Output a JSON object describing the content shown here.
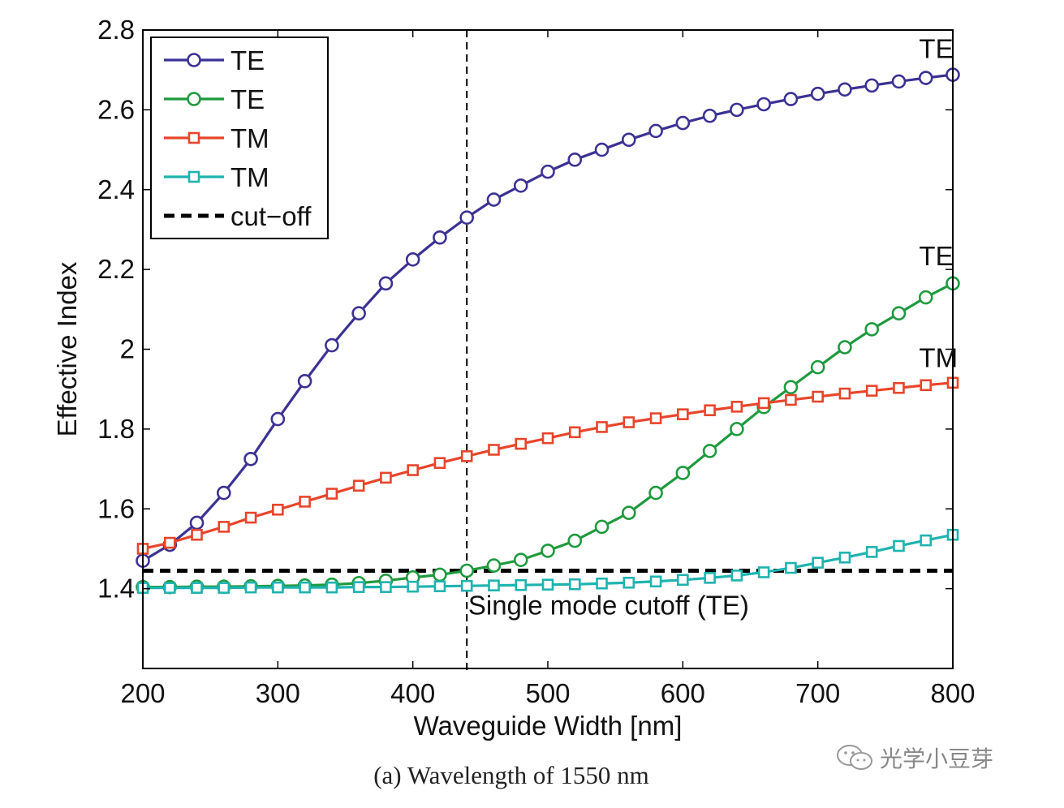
{
  "caption": "(a) Wavelength of 1550 nm",
  "watermark": "光学小豆芽",
  "chart_data": {
    "type": "line",
    "xlabel": "Waveguide Width [nm]",
    "ylabel": "Effective Index",
    "xlim": [
      200,
      800
    ],
    "ylim": [
      1.2,
      2.8
    ],
    "xticks": [
      200,
      300,
      400,
      500,
      600,
      700,
      800
    ],
    "xtick_labels": [
      "200",
      "300",
      "400",
      "500",
      "600",
      "700",
      "800"
    ],
    "yticks": [
      1.4,
      1.6,
      1.8,
      2.0,
      2.2,
      2.4,
      2.6,
      2.8
    ],
    "ytick_labels": [
      "1.4",
      "1.6",
      "1.8",
      "2",
      "2.2",
      "2.4",
      "2.6",
      "2.8"
    ],
    "grid": false,
    "legend_position": "top-left",
    "x": [
      200,
      220,
      240,
      260,
      280,
      300,
      320,
      340,
      360,
      380,
      400,
      420,
      440,
      460,
      480,
      500,
      520,
      540,
      560,
      580,
      600,
      620,
      640,
      660,
      680,
      700,
      720,
      740,
      760,
      780,
      800
    ],
    "series": [
      {
        "name": "TE",
        "color": "#3b3294",
        "marker": "circle",
        "values": [
          1.47,
          1.51,
          1.565,
          1.64,
          1.725,
          1.825,
          1.92,
          2.01,
          2.09,
          2.165,
          2.225,
          2.28,
          2.33,
          2.375,
          2.41,
          2.445,
          2.475,
          2.5,
          2.525,
          2.547,
          2.567,
          2.585,
          2.6,
          2.614,
          2.627,
          2.64,
          2.651,
          2.661,
          2.671,
          2.68,
          2.688
        ]
      },
      {
        "name": "TE",
        "color": "#1f9a3e",
        "marker": "circle",
        "values": [
          1.404,
          1.404,
          1.405,
          1.405,
          1.406,
          1.407,
          1.408,
          1.41,
          1.414,
          1.42,
          1.428,
          1.435,
          1.445,
          1.458,
          1.472,
          1.495,
          1.52,
          1.555,
          1.59,
          1.64,
          1.69,
          1.745,
          1.8,
          1.855,
          1.905,
          1.955,
          2.005,
          2.05,
          2.09,
          2.13,
          2.165
        ]
      },
      {
        "name": "TM",
        "color": "#e8452b",
        "marker": "square",
        "values": [
          1.5,
          1.515,
          1.535,
          1.555,
          1.578,
          1.598,
          1.618,
          1.638,
          1.658,
          1.678,
          1.697,
          1.715,
          1.732,
          1.748,
          1.763,
          1.777,
          1.792,
          1.805,
          1.817,
          1.827,
          1.837,
          1.847,
          1.856,
          1.865,
          1.873,
          1.881,
          1.889,
          1.896,
          1.903,
          1.91,
          1.916
        ]
      },
      {
        "name": "TM",
        "color": "#1fb3b0",
        "marker": "square",
        "values": [
          1.402,
          1.402,
          1.402,
          1.402,
          1.403,
          1.403,
          1.403,
          1.403,
          1.404,
          1.404,
          1.405,
          1.406,
          1.407,
          1.408,
          1.409,
          1.41,
          1.411,
          1.413,
          1.415,
          1.418,
          1.422,
          1.427,
          1.433,
          1.441,
          1.452,
          1.465,
          1.478,
          1.492,
          1.507,
          1.521,
          1.535
        ]
      }
    ],
    "cutoff": {
      "name": "cut−off",
      "y": 1.445,
      "color": "#000000"
    },
    "vline": {
      "x": 440,
      "color": "#000000"
    },
    "annotations": [
      {
        "text": "TE",
        "x": 775,
        "y": 2.73
      },
      {
        "text": "TE",
        "x": 775,
        "y": 2.21
      },
      {
        "text": "TM",
        "x": 775,
        "y": 1.955
      },
      {
        "text": "Single mode cutoff (TE)",
        "x": 441,
        "y": 1.335
      }
    ]
  }
}
